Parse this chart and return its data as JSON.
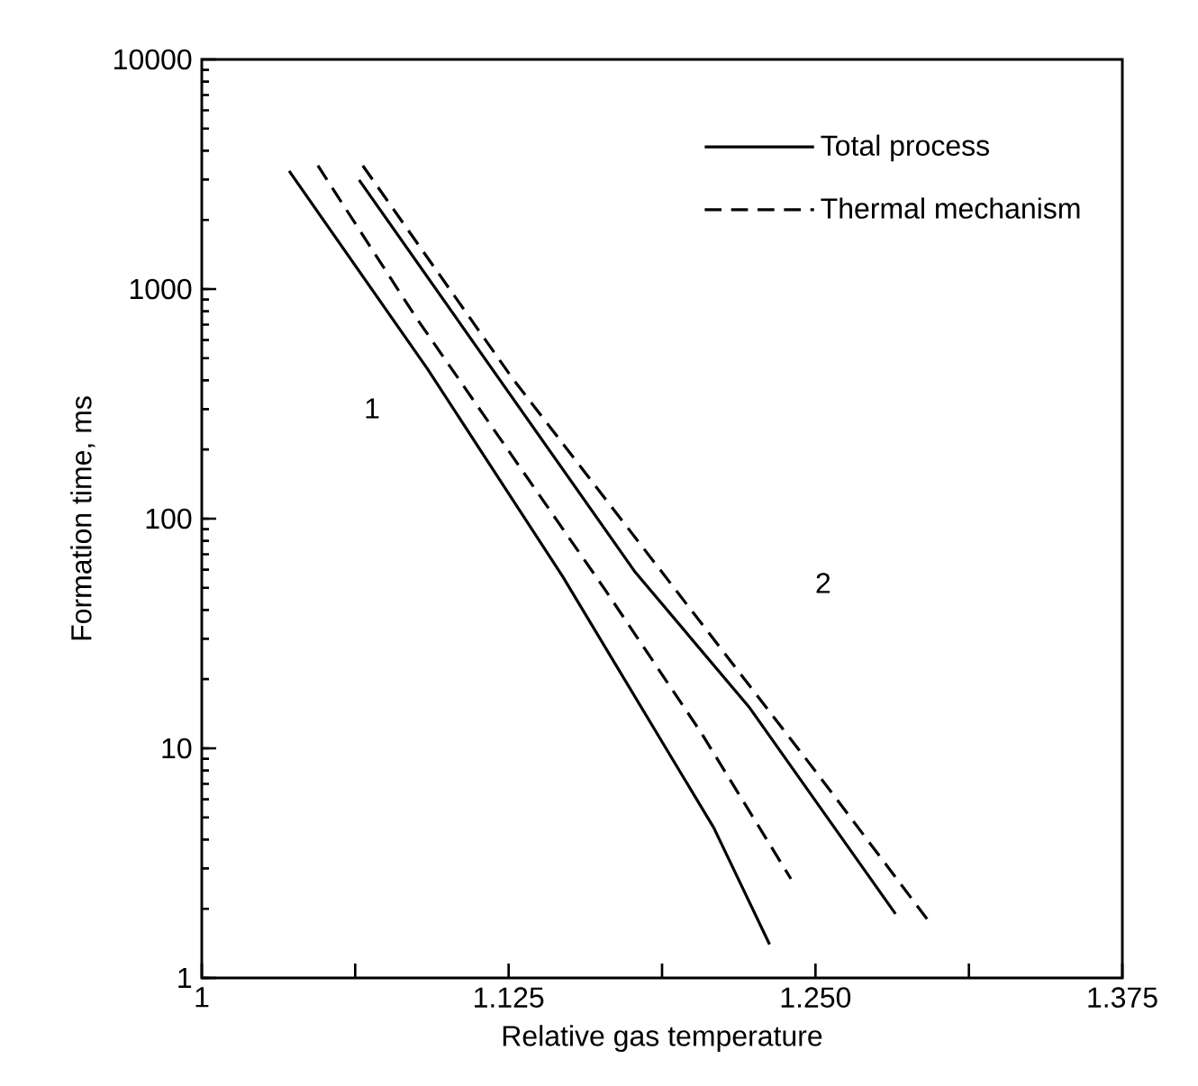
{
  "chart_data": {
    "type": "line",
    "xlabel": "Relative gas temperature",
    "ylabel": "Formation time, ms",
    "log": "y",
    "xlim": [
      1,
      1.375
    ],
    "ylim": [
      1,
      10000
    ],
    "xticks": [
      1,
      {
        "value": 1.0625,
        "label": null
      },
      1.125,
      {
        "value": 1.1875,
        "label": null
      },
      {
        "value": 1.25,
        "label": "1.250"
      },
      {
        "value": 1.3125,
        "label": null
      },
      1.375
    ],
    "yticks": [
      1,
      10,
      100,
      1000,
      10000
    ],
    "legend": "top right",
    "grid": false,
    "marker": "none",
    "series": [
      {
        "name": "Total process",
        "color": "#000000",
        "line_style": "solid",
        "x": [
          1.0356,
          1.092,
          1.147,
          1.2086,
          1.2313
        ],
        "values": [
          3265,
          448,
          56,
          4.5,
          1.4
        ]
      },
      {
        "name": "Thermal mechanism",
        "color": "#000000",
        "line_style": "dashed",
        "x": [
          1.0473,
          1.0876,
          1.1646,
          1.2034,
          1.24
        ],
        "values": [
          3445,
          743,
          48.5,
          11.7,
          2.7
        ]
      },
      {
        "color": "#000000",
        "line_style": "solid",
        "x": [
          1.0641,
          1.1763,
          1.2232,
          1.2826
        ],
        "values": [
          2985,
          59,
          15,
          1.9
        ]
      },
      {
        "color": "#000000",
        "line_style": "dashed",
        "x": [
          1.0656,
          1.1265,
          1.251,
          1.2973
        ],
        "values": [
          3445,
          409,
          7.7,
          1.7
        ]
      }
    ],
    "annotations": [
      "1",
      "2"
    ]
  }
}
